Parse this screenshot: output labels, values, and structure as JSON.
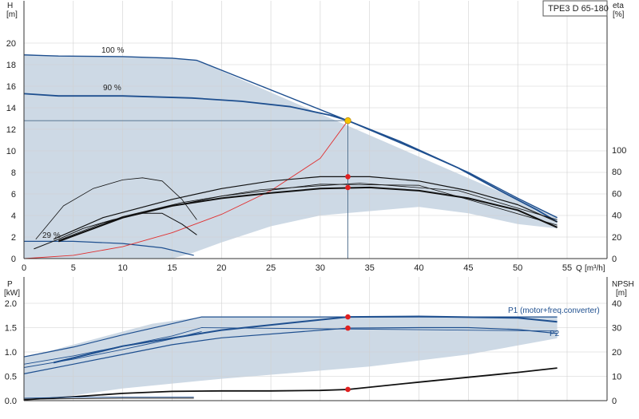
{
  "title_box": "TPE3 D 65-180",
  "chart_data": [
    {
      "type": "line",
      "name": "head-eta",
      "y_left_label": "H",
      "y_left_unit": "[m]",
      "y_right_label": "eta",
      "y_right_unit": "[%]",
      "x_label": "Q",
      "x_unit": "[m³/h]",
      "xlim": [
        0,
        55
      ],
      "ylim": [
        0,
        20
      ],
      "y2lim": [
        0,
        150
      ],
      "x_ticks": [
        0,
        5,
        10,
        15,
        20,
        25,
        30,
        35,
        40,
        45,
        50,
        55
      ],
      "y_ticks": [
        0,
        2,
        4,
        6,
        8,
        10,
        12,
        14,
        16,
        18,
        20
      ],
      "y2_ticks": [
        0,
        20,
        40,
        60,
        80,
        100
      ],
      "operating_point": {
        "x": 32.8,
        "y": 12.8
      },
      "duty_eta": [
        {
          "x": 32.8,
          "y": 7.6
        },
        {
          "x": 32.8,
          "y": 6.6
        }
      ],
      "labels": {
        "pct100": "100 %",
        "pct90": "90 %",
        "pct29": "29 %"
      },
      "region": [
        [
          0,
          19
        ],
        [
          3.5,
          18.8
        ],
        [
          14,
          18.7
        ],
        [
          17.5,
          18.4
        ],
        [
          54,
          3.9
        ],
        [
          54,
          2.8
        ],
        [
          50,
          3.2
        ],
        [
          45,
          4.2
        ],
        [
          40,
          4.8
        ],
        [
          30,
          4.0
        ],
        [
          25,
          3.0
        ],
        [
          20,
          1.5
        ],
        [
          17,
          0.5
        ],
        [
          15,
          0
        ],
        [
          0,
          0
        ]
      ],
      "series": [
        {
          "values": [
            [
              0,
              18.9
            ],
            [
              3.5,
              18.8
            ],
            [
              10,
              18.75
            ],
            [
              15,
              18.6
            ],
            [
              17.5,
              18.4
            ],
            [
              32.8,
              12.8
            ],
            [
              40,
              10.0
            ],
            [
              45,
              8.0
            ],
            [
              50,
              5.6
            ],
            [
              54,
              3.8
            ]
          ],
          "color": "#1e4f8f",
          "width": 1.4
        },
        {
          "values": [
            [
              0,
              15.3
            ],
            [
              3.5,
              15.1
            ],
            [
              10,
              15.1
            ],
            [
              17,
              14.9
            ],
            [
              22,
              14.6
            ],
            [
              27,
              14.1
            ],
            [
              31,
              13.3
            ],
            [
              32.8,
              12.8
            ]
          ],
          "color": "#1e4f8f",
          "width": 1.8
        },
        {
          "values": [
            [
              32.8,
              12.8
            ],
            [
              38,
              10.9
            ],
            [
              44,
              8.4
            ],
            [
              48,
              6.4
            ],
            [
              52,
              4.5
            ],
            [
              54,
              3.4
            ]
          ],
          "color": "#1e4f8f",
          "width": 1.8
        },
        {
          "values": [
            [
              0,
              1.6
            ],
            [
              5,
              1.6
            ],
            [
              10,
              1.4
            ],
            [
              14,
              1.0
            ],
            [
              17.2,
              0.3
            ]
          ],
          "color": "#1e4f8f",
          "width": 1.2
        },
        {
          "values": [
            [
              0,
              0
            ],
            [
              5,
              0.3
            ],
            [
              10,
              1.1
            ],
            [
              15,
              2.4
            ],
            [
              20,
              4.1
            ],
            [
              25,
              6.3
            ],
            [
              30,
              9.3
            ],
            [
              32.8,
              12.8
            ]
          ],
          "color": "#e03030",
          "width": 0.9
        },
        {
          "values": [
            [
              1.2,
              1.8
            ],
            [
              4,
              4.9
            ],
            [
              7,
              6.5
            ],
            [
              10,
              7.3
            ],
            [
              12,
              7.5
            ],
            [
              14,
              7.2
            ],
            [
              16,
              5.5
            ],
            [
              17.5,
              3.6
            ]
          ],
          "color": "#111111",
          "width": 0.8
        },
        {
          "values": [
            [
              1,
              0.9
            ],
            [
              3.5,
              1.8
            ],
            [
              6,
              2.8
            ],
            [
              9,
              3.6
            ],
            [
              12,
              4.2
            ],
            [
              14,
              4.2
            ],
            [
              16,
              3.2
            ],
            [
              17.5,
              2.2
            ]
          ],
          "color": "#111111",
          "width": 1.0
        },
        {
          "values": [
            [
              3,
              1.8
            ],
            [
              8,
              3.8
            ],
            [
              15,
              5.5
            ],
            [
              20,
              6.5
            ],
            [
              25,
              7.2
            ],
            [
              30,
              7.6
            ],
            [
              35,
              7.6
            ],
            [
              40,
              7.2
            ],
            [
              45,
              6.3
            ],
            [
              50,
              5.0
            ],
            [
              54,
              3.4
            ]
          ],
          "color": "#111111",
          "width": 1.2
        },
        {
          "values": [
            [
              3.5,
              1.6
            ],
            [
              10,
              3.8
            ],
            [
              15,
              4.9
            ],
            [
              20,
              5.6
            ],
            [
              25,
              6.1
            ],
            [
              30,
              6.5
            ],
            [
              35,
              6.6
            ],
            [
              40,
              6.3
            ],
            [
              45,
              5.6
            ],
            [
              50,
              4.5
            ],
            [
              54,
              2.9
            ]
          ],
          "color": "#111111",
          "width": 2.0
        },
        {
          "values": [
            [
              3.5,
              1.7
            ],
            [
              8,
              3.3
            ],
            [
              14,
              4.7
            ],
            [
              20,
              5.8
            ],
            [
              30,
              6.9
            ],
            [
              40,
              6.8
            ],
            [
              54,
              3.1
            ]
          ],
          "color": "#111111",
          "width": 0.8
        },
        {
          "values": [
            [
              4,
              1.8
            ],
            [
              10,
              3.9
            ],
            [
              16,
              5.2
            ],
            [
              24,
              6.4
            ],
            [
              34,
              7.0
            ],
            [
              44,
              6.3
            ],
            [
              54,
              3.6
            ]
          ],
          "color": "#111111",
          "width": 0.8
        }
      ]
    },
    {
      "type": "line",
      "name": "power-npsh",
      "y_left_label": "P",
      "y_left_unit": "[kW]",
      "y_right_label": "NPSH",
      "y_right_unit": "[m]",
      "xlim": [
        0,
        55
      ],
      "ylim": [
        0,
        2.0
      ],
      "y2lim": [
        0,
        40
      ],
      "y_ticks": [
        0.0,
        0.5,
        1.0,
        1.5,
        2.0
      ],
      "y2_ticks": [
        0,
        10,
        20,
        30,
        40
      ],
      "points": [
        {
          "x": 32.8,
          "y": 1.72
        },
        {
          "x": 32.8,
          "y": 1.49
        },
        {
          "x": 32.8,
          "y": 0.23
        }
      ],
      "labels": {
        "p1": "P1 (motor+freq.converter)",
        "p2": "P2"
      },
      "region": [
        [
          0,
          0.88
        ],
        [
          13,
          1.58
        ],
        [
          18,
          1.72
        ],
        [
          54,
          1.72
        ],
        [
          54,
          1.28
        ],
        [
          45,
          0.95
        ],
        [
          35,
          0.7
        ],
        [
          20,
          0.45
        ],
        [
          10,
          0.25
        ],
        [
          3,
          0.05
        ],
        [
          0,
          0.05
        ]
      ],
      "series": [
        {
          "values": [
            [
              0,
              0.9
            ],
            [
              5,
              1.1
            ],
            [
              10,
              1.35
            ],
            [
              15,
              1.58
            ],
            [
              18,
              1.72
            ],
            [
              54,
              1.72
            ]
          ],
          "color": "#1e4f8f",
          "width": 1.2
        },
        {
          "values": [
            [
              0,
              0.75
            ],
            [
              5,
              0.92
            ],
            [
              10,
              1.12
            ],
            [
              15,
              1.33
            ],
            [
              18,
              1.5
            ],
            [
              54,
              1.43
            ]
          ],
          "color": "#1e4f8f",
          "width": 0.9
        },
        {
          "values": [
            [
              0,
              0.68
            ],
            [
              5,
              0.85
            ],
            [
              10,
              1.05
            ],
            [
              15,
              1.27
            ],
            [
              18,
              1.42
            ]
          ],
          "color": "#1e4f8f",
          "width": 0.9
        },
        {
          "values": [
            [
              0,
              0.55
            ],
            [
              5,
              0.75
            ],
            [
              10,
              0.95
            ],
            [
              15,
              1.15
            ],
            [
              20,
              1.29
            ],
            [
              32.8,
              1.49
            ],
            [
              40,
              1.5
            ],
            [
              45,
              1.5
            ],
            [
              50,
              1.46
            ],
            [
              54,
              1.38
            ]
          ],
          "color": "#1e4f8f",
          "width": 1.2
        },
        {
          "values": [
            [
              3,
              0.78
            ],
            [
              10,
              1.12
            ],
            [
              20,
              1.45
            ],
            [
              32.8,
              1.72
            ],
            [
              40,
              1.73
            ],
            [
              50,
              1.7
            ],
            [
              54,
              1.62
            ]
          ],
          "color": "#1e4f8f",
          "width": 2.0
        },
        {
          "values": [
            [
              0,
              0.02
            ],
            [
              5,
              0.08
            ],
            [
              10,
              0.15
            ],
            [
              15,
              0.19
            ],
            [
              20,
              0.2
            ],
            [
              25,
              0.2
            ],
            [
              30,
              0.21
            ],
            [
              32.8,
              0.23
            ],
            [
              40,
              0.38
            ],
            [
              45,
              0.48
            ],
            [
              50,
              0.58
            ],
            [
              54,
              0.67
            ]
          ],
          "color": "#111111",
          "width": 1.8
        },
        {
          "values": [
            [
              0,
              0.05
            ],
            [
              5,
              0.07
            ],
            [
              10,
              0.07
            ],
            [
              17.2,
              0.07
            ]
          ],
          "color": "#1e4f8f",
          "width": 0.9
        },
        {
          "values": [
            [
              0,
              0.03
            ],
            [
              5,
              0.04
            ],
            [
              10,
              0.05
            ],
            [
              17.2,
              0.05
            ]
          ],
          "color": "#111111",
          "width": 0.9
        }
      ]
    }
  ]
}
